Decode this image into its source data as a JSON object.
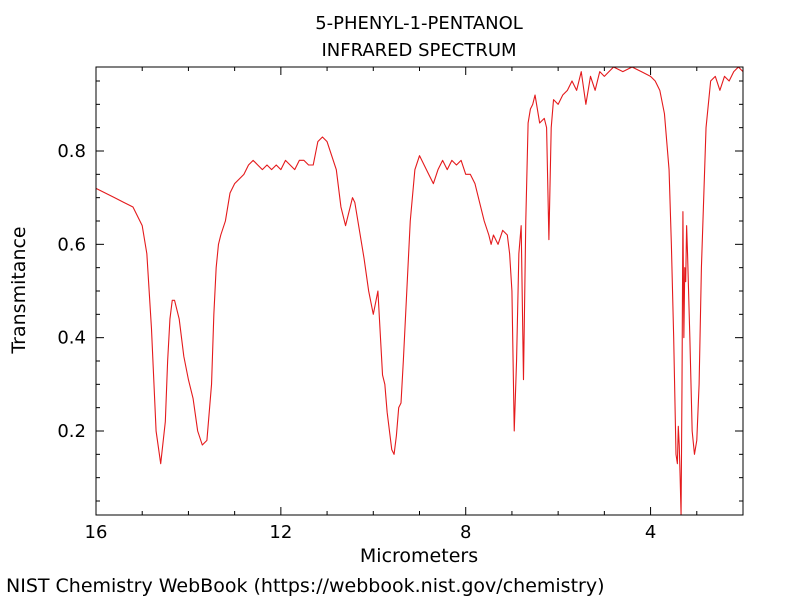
{
  "footer": {
    "credit": "NIST Chemistry WebBook (https://webbook.nist.gov/chemistry)"
  },
  "chart_data": {
    "type": "line",
    "title": "5-PHENYL-1-PENTANOL",
    "subtitle": "INFRARED SPECTRUM",
    "xlabel": "Micrometers",
    "ylabel": "Transmitance",
    "xlim": [
      16,
      2
    ],
    "ylim": [
      0.02,
      0.98
    ],
    "x_reversed": true,
    "grid": false,
    "legend": "none",
    "xticks": [
      16,
      12,
      8,
      4
    ],
    "xtick_labels": [
      "16",
      "12",
      "8",
      "4"
    ],
    "yticks": [
      0.2,
      0.4,
      0.6,
      0.8
    ],
    "ytick_labels": [
      "0.2",
      "0.4",
      "0.6",
      "0.8"
    ],
    "line_color": "#e41a1c",
    "series": [
      {
        "x": [
          16.0,
          15.8,
          15.6,
          15.4,
          15.2,
          15.0,
          14.9,
          14.8,
          14.7,
          14.6,
          14.5,
          14.45,
          14.4,
          14.35,
          14.3,
          14.2,
          14.1,
          14.0,
          13.9,
          13.8,
          13.7,
          13.6,
          13.5,
          13.45,
          13.4,
          13.35,
          13.3,
          13.2,
          13.1,
          13.0,
          12.9,
          12.8,
          12.7,
          12.6,
          12.5,
          12.4,
          12.3,
          12.2,
          12.1,
          12.0,
          11.9,
          11.8,
          11.7,
          11.6,
          11.5,
          11.4,
          11.3,
          11.2,
          11.1,
          11.0,
          10.9,
          10.8,
          10.7,
          10.6,
          10.5,
          10.45,
          10.4,
          10.3,
          10.2,
          10.1,
          10.0,
          9.9,
          9.8,
          9.75,
          9.7,
          9.6,
          9.55,
          9.5,
          9.45,
          9.4,
          9.35,
          9.3,
          9.2,
          9.1,
          9.0,
          8.9,
          8.8,
          8.7,
          8.6,
          8.5,
          8.4,
          8.3,
          8.2,
          8.1,
          8.0,
          7.9,
          7.8,
          7.7,
          7.6,
          7.5,
          7.45,
          7.4,
          7.3,
          7.2,
          7.1,
          7.05,
          7.0,
          6.95,
          6.9,
          6.85,
          6.8,
          6.75,
          6.7,
          6.65,
          6.6,
          6.55,
          6.5,
          6.4,
          6.3,
          6.25,
          6.2,
          6.15,
          6.1,
          6.0,
          5.9,
          5.8,
          5.7,
          5.6,
          5.5,
          5.4,
          5.3,
          5.2,
          5.1,
          5.0,
          4.9,
          4.8,
          4.6,
          4.4,
          4.2,
          4.0,
          3.9,
          3.8,
          3.7,
          3.6,
          3.55,
          3.5,
          3.45,
          3.42,
          3.4,
          3.38,
          3.36,
          3.34,
          3.32,
          3.3,
          3.28,
          3.26,
          3.24,
          3.22,
          3.2,
          3.15,
          3.1,
          3.05,
          3.0,
          2.95,
          2.9,
          2.8,
          2.7,
          2.6,
          2.5,
          2.4,
          2.3,
          2.2,
          2.1,
          2.0
        ],
        "y": [
          0.72,
          0.71,
          0.7,
          0.69,
          0.68,
          0.64,
          0.58,
          0.42,
          0.2,
          0.13,
          0.22,
          0.35,
          0.44,
          0.48,
          0.48,
          0.44,
          0.36,
          0.31,
          0.27,
          0.2,
          0.17,
          0.18,
          0.3,
          0.45,
          0.55,
          0.6,
          0.62,
          0.65,
          0.71,
          0.73,
          0.74,
          0.75,
          0.77,
          0.78,
          0.77,
          0.76,
          0.77,
          0.76,
          0.77,
          0.76,
          0.78,
          0.77,
          0.76,
          0.78,
          0.78,
          0.77,
          0.77,
          0.82,
          0.83,
          0.82,
          0.79,
          0.76,
          0.68,
          0.64,
          0.68,
          0.7,
          0.69,
          0.63,
          0.57,
          0.5,
          0.45,
          0.5,
          0.32,
          0.3,
          0.24,
          0.16,
          0.15,
          0.19,
          0.25,
          0.26,
          0.35,
          0.45,
          0.65,
          0.76,
          0.79,
          0.77,
          0.75,
          0.73,
          0.76,
          0.78,
          0.76,
          0.78,
          0.77,
          0.78,
          0.75,
          0.75,
          0.73,
          0.69,
          0.65,
          0.62,
          0.6,
          0.62,
          0.6,
          0.63,
          0.62,
          0.58,
          0.5,
          0.2,
          0.35,
          0.58,
          0.64,
          0.31,
          0.65,
          0.86,
          0.89,
          0.9,
          0.92,
          0.86,
          0.87,
          0.85,
          0.61,
          0.85,
          0.91,
          0.9,
          0.92,
          0.93,
          0.95,
          0.93,
          0.97,
          0.9,
          0.96,
          0.93,
          0.97,
          0.96,
          0.97,
          0.98,
          0.97,
          0.98,
          0.97,
          0.96,
          0.95,
          0.93,
          0.88,
          0.76,
          0.6,
          0.4,
          0.15,
          0.13,
          0.21,
          0.17,
          0.1,
          0.02,
          0.3,
          0.67,
          0.4,
          0.55,
          0.52,
          0.64,
          0.58,
          0.4,
          0.2,
          0.15,
          0.18,
          0.3,
          0.55,
          0.85,
          0.95,
          0.96,
          0.93,
          0.96,
          0.95,
          0.97,
          0.98,
          0.97
        ]
      }
    ]
  }
}
